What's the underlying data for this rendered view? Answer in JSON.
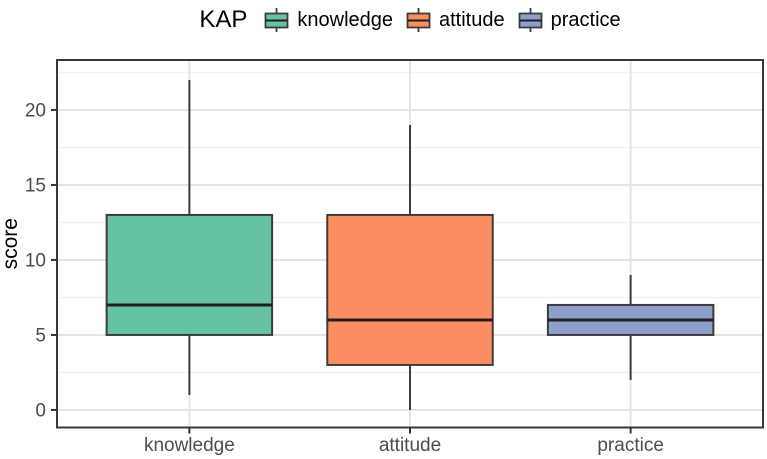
{
  "legend": {
    "title": "KAP",
    "items": [
      {
        "label": "knowledge",
        "color": "#66C2A5"
      },
      {
        "label": "attitude",
        "color": "#FC8D62"
      },
      {
        "label": "practice",
        "color": "#8DA0CB"
      }
    ]
  },
  "chart_data": {
    "type": "boxplot",
    "title": "",
    "xlabel": "",
    "ylabel": "score",
    "categories": [
      "knowledge",
      "attitude",
      "practice"
    ],
    "yticks": [
      0,
      5,
      10,
      15,
      20
    ],
    "yminor": [
      2.5,
      7.5,
      12.5,
      17.5,
      22.5
    ],
    "ylim": [
      -1.17,
      23.33
    ],
    "grid": true,
    "legend_position": "top",
    "series": [
      {
        "name": "knowledge",
        "color": "#66C2A5",
        "min": 1,
        "q1": 5,
        "median": 7,
        "q3": 13,
        "max": 22
      },
      {
        "name": "attitude",
        "color": "#FC8D62",
        "min": 0,
        "q1": 3,
        "median": 6,
        "q3": 13,
        "max": 19
      },
      {
        "name": "practice",
        "color": "#8DA0CB",
        "min": 2,
        "q1": 5,
        "median": 6,
        "q3": 7,
        "max": 9
      }
    ],
    "colors": {
      "box_border": "#3c3c3c",
      "median": "#1f1f1f",
      "grid_major": "#e4e4e4",
      "grid_minor": "#f1f1f1",
      "panel_border": "#383838",
      "tick": "#333333",
      "axis_text": "#4d4d4d",
      "axis_title": "#000000",
      "panel_bg": "#ffffff"
    }
  }
}
